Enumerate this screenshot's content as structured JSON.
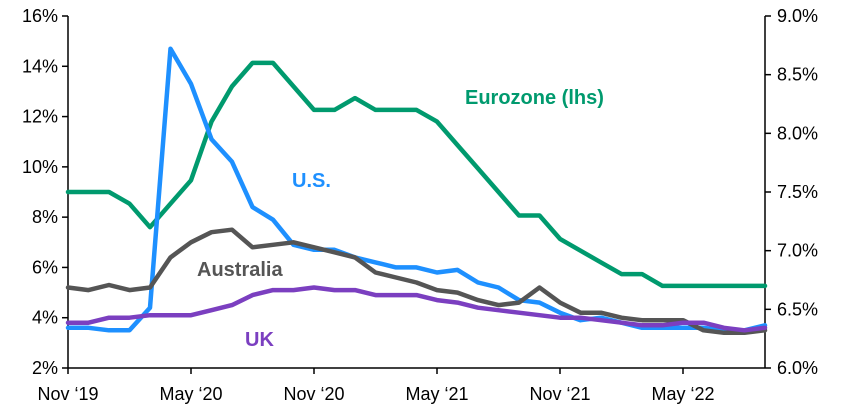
{
  "chart_data": {
    "type": "line",
    "title": "",
    "xlabel": "",
    "ylabel": "",
    "x_tick_labels": [
      "Nov ‘19",
      "May ‘20",
      "Nov ‘20",
      "May ‘21",
      "Nov ‘21",
      "May ‘22"
    ],
    "x": [
      "2019-11",
      "2019-12",
      "2020-01",
      "2020-02",
      "2020-03",
      "2020-04",
      "2020-05",
      "2020-06",
      "2020-07",
      "2020-08",
      "2020-09",
      "2020-10",
      "2020-11",
      "2020-12",
      "2021-01",
      "2021-02",
      "2021-03",
      "2021-04",
      "2021-05",
      "2021-06",
      "2021-07",
      "2021-08",
      "2021-09",
      "2021-10",
      "2021-11",
      "2021-12",
      "2022-01",
      "2022-02",
      "2022-03",
      "2022-04",
      "2022-05",
      "2022-06",
      "2022-07",
      "2022-08",
      "2022-09"
    ],
    "left_axis": {
      "ylim": [
        2,
        16
      ],
      "tick_labels": [
        "2%",
        "4%",
        "6%",
        "8%",
        "10%",
        "12%",
        "14%",
        "16%"
      ]
    },
    "right_axis": {
      "ylim": [
        6.0,
        9.0
      ],
      "tick_labels": [
        "6.0%",
        "6.5%",
        "7.0%",
        "7.5%",
        "8.0%",
        "8.5%",
        "9.0%"
      ]
    },
    "series": [
      {
        "name": "Eurozone (lhs)",
        "axis": "right",
        "color": "#009A6E",
        "values": [
          7.5,
          7.5,
          7.5,
          7.4,
          7.2,
          7.4,
          7.6,
          8.1,
          8.4,
          8.6,
          8.6,
          8.4,
          8.2,
          8.2,
          8.3,
          8.2,
          8.2,
          8.2,
          8.1,
          7.9,
          7.7,
          7.5,
          7.3,
          7.3,
          7.1,
          7.0,
          6.9,
          6.8,
          6.8,
          6.7,
          6.7,
          6.7,
          6.7,
          6.7,
          6.7
        ]
      },
      {
        "name": "U.S.",
        "axis": "left",
        "color": "#1E90FF",
        "values": [
          3.6,
          3.6,
          3.5,
          3.5,
          4.4,
          14.7,
          13.3,
          11.1,
          10.2,
          8.4,
          7.9,
          6.9,
          6.7,
          6.7,
          6.4,
          6.2,
          6.0,
          6.0,
          5.8,
          5.9,
          5.4,
          5.2,
          4.7,
          4.6,
          4.2,
          3.9,
          4.0,
          3.8,
          3.6,
          3.6,
          3.6,
          3.6,
          3.5,
          3.5,
          3.7
        ]
      },
      {
        "name": "Australia",
        "axis": "left",
        "color": "#555555",
        "values": [
          5.2,
          5.1,
          5.3,
          5.1,
          5.2,
          6.4,
          7.0,
          7.4,
          7.5,
          6.8,
          6.9,
          7.0,
          6.8,
          6.6,
          6.4,
          5.8,
          5.6,
          5.4,
          5.1,
          5.0,
          4.7,
          4.5,
          4.6,
          5.2,
          4.6,
          4.2,
          4.2,
          4.0,
          3.9,
          3.9,
          3.9,
          3.5,
          3.4,
          3.4,
          3.5
        ]
      },
      {
        "name": "UK",
        "axis": "left",
        "color": "#7B3FC0",
        "values": [
          3.8,
          3.8,
          4.0,
          4.0,
          4.1,
          4.1,
          4.1,
          4.3,
          4.5,
          4.9,
          5.1,
          5.1,
          5.2,
          5.1,
          5.1,
          4.9,
          4.9,
          4.9,
          4.7,
          4.6,
          4.4,
          4.3,
          4.2,
          4.1,
          4.0,
          4.0,
          3.9,
          3.8,
          3.7,
          3.7,
          3.8,
          3.8,
          3.6,
          3.5,
          3.6
        ]
      }
    ],
    "grid": false,
    "legend": "inline labels near lines"
  }
}
